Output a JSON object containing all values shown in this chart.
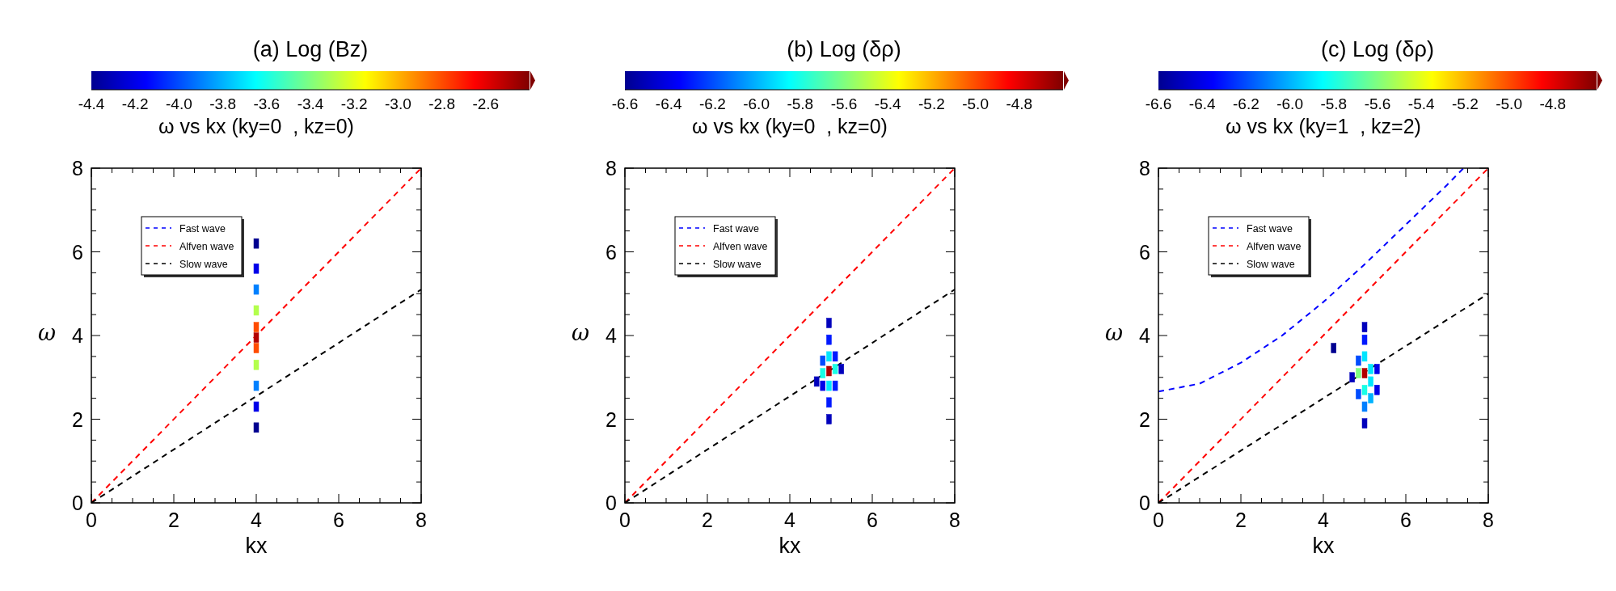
{
  "chart_data": [
    {
      "type": "line",
      "title": "(a) Log (Bz)",
      "subtitle": "ω vs kx (ky=0  , kz=0)",
      "xlabel": "kx",
      "ylabel": "ω",
      "xlim": [
        0,
        8
      ],
      "ylim": [
        0,
        8
      ],
      "xticks": [
        0,
        {
          "value": 0.5,
          "label": null
        },
        {
          "value": 1,
          "label": null
        },
        {
          "value": 1.5,
          "label": null
        },
        2,
        {
          "value": 2.5,
          "label": null
        },
        {
          "value": 3,
          "label": null
        },
        {
          "value": 3.5,
          "label": null
        },
        4,
        {
          "value": 4.5,
          "label": null
        },
        {
          "value": 5,
          "label": null
        },
        {
          "value": 5.5,
          "label": null
        },
        6,
        {
          "value": 6.5,
          "label": null
        },
        {
          "value": 7,
          "label": null
        },
        {
          "value": 7.5,
          "label": null
        },
        8
      ],
      "yticks": [
        0,
        {
          "value": 0.5,
          "label": null
        },
        {
          "value": 1,
          "label": null
        },
        {
          "value": 1.5,
          "label": null
        },
        2,
        {
          "value": 2.5,
          "label": null
        },
        {
          "value": 3,
          "label": null
        },
        {
          "value": 3.5,
          "label": null
        },
        4,
        {
          "value": 4.5,
          "label": null
        },
        {
          "value": 5,
          "label": null
        },
        {
          "value": 5.5,
          "label": null
        },
        6,
        {
          "value": 6.5,
          "label": null
        },
        {
          "value": 7,
          "label": null
        },
        {
          "value": 7.5,
          "label": null
        },
        8
      ],
      "clim": [
        -4.4,
        -2.4
      ],
      "cticks": [
        -4.4,
        -4.2,
        "-4.0",
        -3.8,
        -3.6,
        -3.4,
        -3.2,
        "-3.0",
        -2.8,
        -2.6
      ],
      "legend": "top left",
      "line_style": "dashed",
      "series": [
        {
          "name": "Fast wave",
          "color": "#0000ff"
        },
        {
          "name": "Alfven wave",
          "color": "#ff0000",
          "x": [
            0,
            8
          ],
          "values": [
            0,
            8
          ]
        },
        {
          "name": "Slow wave",
          "color": "#000000",
          "x": [
            0,
            8
          ],
          "values": [
            0,
            5.1
          ]
        },
        {
          "type": "scatter",
          "marker": "square",
          "x": [
            4,
            4,
            4,
            4,
            4,
            4,
            4,
            4,
            4,
            4,
            4
          ],
          "values": [
            1.8,
            2.3,
            2.8,
            3.3,
            3.7,
            3.95,
            4.2,
            4.6,
            5.1,
            5.6,
            6.2
          ],
          "cvalues": [
            -4.4,
            -4.2,
            -3.9,
            -3.3,
            -2.8,
            -2.5,
            -2.8,
            -3.3,
            -3.9,
            -4.2,
            -4.4
          ],
          "colors": [
            "#000090",
            "#0000e9",
            "#0080ff",
            "#b3ff4d",
            "#ff4d00",
            "#b30000",
            "#ff4d00",
            "#b3ff4d",
            "#0080ff",
            "#0000e9",
            "#000090"
          ]
        }
      ]
    },
    {
      "type": "line",
      "title": "(b) Log (δρ)",
      "subtitle": "ω vs kx (ky=0  , kz=0)",
      "xlabel": "kx",
      "ylabel": "ω",
      "xlim": [
        0,
        8
      ],
      "ylim": [
        0,
        8
      ],
      "xticks": [
        0,
        {
          "value": 0.5,
          "label": null
        },
        {
          "value": 1,
          "label": null
        },
        {
          "value": 1.5,
          "label": null
        },
        2,
        {
          "value": 2.5,
          "label": null
        },
        {
          "value": 3,
          "label": null
        },
        {
          "value": 3.5,
          "label": null
        },
        4,
        {
          "value": 4.5,
          "label": null
        },
        {
          "value": 5,
          "label": null
        },
        {
          "value": 5.5,
          "label": null
        },
        6,
        {
          "value": 6.5,
          "label": null
        },
        {
          "value": 7,
          "label": null
        },
        {
          "value": 7.5,
          "label": null
        },
        8
      ],
      "yticks": [
        0,
        {
          "value": 0.5,
          "label": null
        },
        {
          "value": 1,
          "label": null
        },
        {
          "value": 1.5,
          "label": null
        },
        2,
        {
          "value": 2.5,
          "label": null
        },
        {
          "value": 3,
          "label": null
        },
        {
          "value": 3.5,
          "label": null
        },
        4,
        {
          "value": 4.5,
          "label": null
        },
        {
          "value": 5,
          "label": null
        },
        {
          "value": 5.5,
          "label": null
        },
        6,
        {
          "value": 6.5,
          "label": null
        },
        {
          "value": 7,
          "label": null
        },
        {
          "value": 7.5,
          "label": null
        },
        8
      ],
      "clim": [
        -6.6,
        -4.6
      ],
      "cticks": [
        -6.6,
        -6.4,
        -6.2,
        "-6.0",
        -5.8,
        -5.6,
        -5.4,
        -5.2,
        "-5.0",
        -4.8
      ],
      "legend": "top left",
      "line_style": "dashed",
      "series": [
        {
          "name": "Fast wave",
          "color": "#0000ff"
        },
        {
          "name": "Alfven wave",
          "color": "#ff0000",
          "x": [
            0,
            8
          ],
          "values": [
            0,
            8
          ]
        },
        {
          "name": "Slow wave",
          "color": "#000000",
          "x": [
            0,
            8
          ],
          "values": [
            0,
            5.1
          ]
        },
        {
          "type": "scatter",
          "marker": "square",
          "x": [
            4.95,
            4.95,
            4.95,
            4.95,
            4.95,
            4.95,
            4.95,
            4.8,
            4.8,
            4.8,
            5.1,
            5.1,
            5.1,
            4.65,
            5.25
          ],
          "values": [
            2.0,
            2.4,
            2.8,
            3.15,
            3.5,
            3.9,
            4.3,
            2.8,
            3.1,
            3.4,
            2.8,
            3.2,
            3.5,
            2.9,
            3.2
          ],
          "cvalues": [
            -6.5,
            -6.3,
            -5.9,
            -4.7,
            -5.9,
            -6.3,
            -6.5,
            -6.4,
            -5.8,
            -6.2,
            -6.3,
            -5.8,
            -6.3,
            -6.5,
            -6.5
          ],
          "colors": [
            "#0000bc",
            "#001aff",
            "#00e6ff",
            "#b30000",
            "#00e6ff",
            "#001aff",
            "#0000bc",
            "#0000e9",
            "#1affe6",
            "#004dff",
            "#001aff",
            "#1affe6",
            "#001aff",
            "#0000bc",
            "#0000bc"
          ]
        }
      ]
    },
    {
      "type": "line",
      "title": "(c) Log (δρ)",
      "subtitle": "ω vs kx (ky=1  , kz=2)",
      "xlabel": "kx",
      "ylabel": "ω",
      "xlim": [
        0,
        8
      ],
      "ylim": [
        0,
        8
      ],
      "xticks": [
        0,
        {
          "value": 0.5,
          "label": null
        },
        {
          "value": 1,
          "label": null
        },
        {
          "value": 1.5,
          "label": null
        },
        2,
        {
          "value": 2.5,
          "label": null
        },
        {
          "value": 3,
          "label": null
        },
        {
          "value": 3.5,
          "label": null
        },
        4,
        {
          "value": 4.5,
          "label": null
        },
        {
          "value": 5,
          "label": null
        },
        {
          "value": 5.5,
          "label": null
        },
        6,
        {
          "value": 6.5,
          "label": null
        },
        {
          "value": 7,
          "label": null
        },
        {
          "value": 7.5,
          "label": null
        },
        8
      ],
      "yticks": [
        0,
        {
          "value": 0.5,
          "label": null
        },
        {
          "value": 1,
          "label": null
        },
        {
          "value": 1.5,
          "label": null
        },
        2,
        {
          "value": 2.5,
          "label": null
        },
        {
          "value": 3,
          "label": null
        },
        {
          "value": 3.5,
          "label": null
        },
        4,
        {
          "value": 4.5,
          "label": null
        },
        {
          "value": 5,
          "label": null
        },
        {
          "value": 5.5,
          "label": null
        },
        6,
        {
          "value": 6.5,
          "label": null
        },
        {
          "value": 7,
          "label": null
        },
        {
          "value": 7.5,
          "label": null
        },
        8
      ],
      "clim": [
        -6.6,
        -4.6
      ],
      "cticks": [
        -6.6,
        -6.4,
        -6.2,
        "-6.0",
        -5.8,
        -5.6,
        -5.4,
        -5.2,
        "-5.0",
        -4.8
      ],
      "legend": "top left",
      "line_style": "dashed",
      "series": [
        {
          "name": "Fast wave",
          "color": "#0000ff",
          "x": [
            0,
            1,
            2,
            3,
            4,
            5,
            6,
            7,
            7.4
          ],
          "values": [
            2.66,
            2.85,
            3.35,
            4.0,
            4.8,
            5.7,
            6.65,
            7.6,
            8
          ]
        },
        {
          "name": "Alfven wave",
          "color": "#ff0000",
          "x": [
            0,
            8
          ],
          "values": [
            0,
            8
          ]
        },
        {
          "name": "Slow wave",
          "color": "#000000",
          "x": [
            0,
            8
          ],
          "values": [
            0,
            5.0
          ]
        },
        {
          "type": "scatter",
          "marker": "square",
          "x": [
            5,
            5,
            5,
            5,
            5,
            5,
            5,
            4.85,
            4.85,
            4.85,
            5.15,
            5.15,
            5.15,
            5.3,
            5.3,
            4.7,
            4.25
          ],
          "values": [
            1.9,
            2.3,
            2.7,
            3.1,
            3.5,
            3.9,
            4.2,
            2.6,
            3.1,
            3.4,
            2.5,
            2.9,
            3.2,
            2.7,
            3.2,
            3.0,
            3.7
          ],
          "cvalues": [
            -6.5,
            -6.1,
            -5.8,
            -4.7,
            -5.9,
            -6.3,
            -6.5,
            -6.2,
            -5.6,
            -6.2,
            -6.0,
            -5.9,
            -5.9,
            -6.4,
            -6.4,
            -6.5,
            -6.6
          ],
          "colors": [
            "#0000bc",
            "#0080ff",
            "#1affe6",
            "#b30000",
            "#00e6ff",
            "#001aff",
            "#0000bc",
            "#004dff",
            "#80ff80",
            "#004dff",
            "#00b3ff",
            "#00e6ff",
            "#00e6ff",
            "#0000e9",
            "#0000e9",
            "#0000bc",
            "#000090"
          ]
        }
      ]
    }
  ]
}
